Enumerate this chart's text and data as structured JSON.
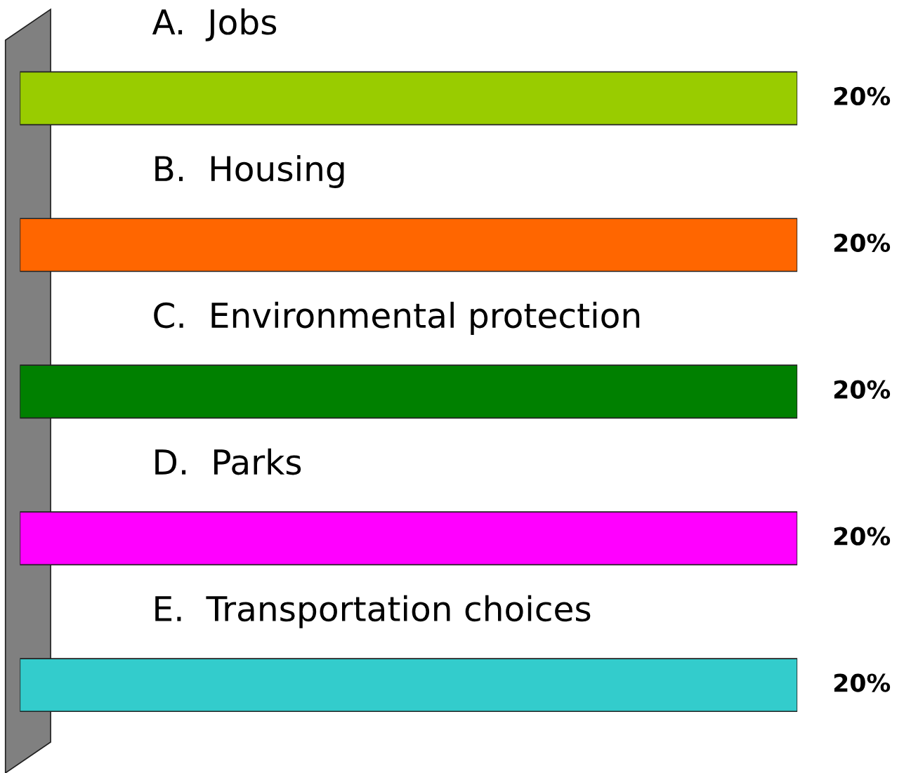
{
  "chart_data": {
    "type": "bar",
    "orientation": "horizontal",
    "categories": [
      "A.  Jobs",
      "B.  Housing",
      "C.  Environmental protection",
      "D.  Parks",
      "E.  Transportation choices"
    ],
    "values": [
      20,
      20,
      20,
      20,
      20
    ],
    "colors": [
      "#99cc00",
      "#ff6600",
      "#008000",
      "#ff00ff",
      "#33cccc"
    ],
    "value_labels": [
      "20%",
      "20%",
      "20%",
      "20%",
      "20%"
    ],
    "grid": false,
    "legend": false,
    "tick_labels": false
  }
}
